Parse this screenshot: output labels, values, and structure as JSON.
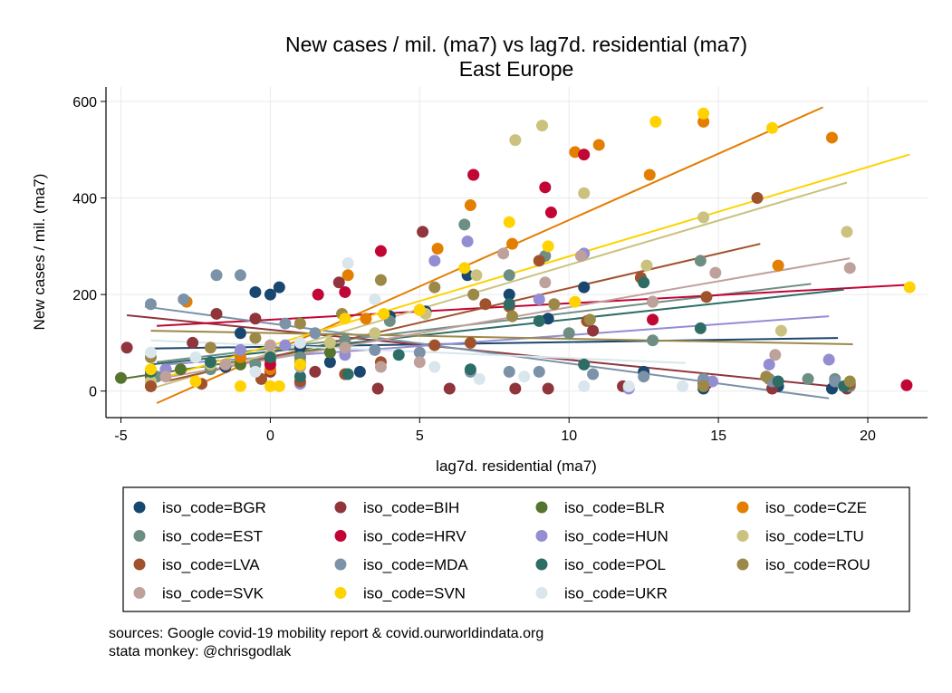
{
  "chart_data": {
    "type": "scatter",
    "title": "New cases / mil. (ma7) vs lag7d. residential (ma7)",
    "subtitle": "East Europe",
    "xlabel": "lag7d. residential (ma7)",
    "ylabel": "New cases / mil. (ma7)",
    "xlim": [
      -5.5,
      22
    ],
    "ylim": [
      -55,
      630
    ],
    "xticks": [
      -5,
      0,
      5,
      10,
      15,
      20
    ],
    "yticks": [
      0,
      200,
      400,
      600
    ],
    "grid": true,
    "legend_position": "bottom",
    "fit_lines": "linear fit per series",
    "series": [
      {
        "name": "iso_code=BGR",
        "color": "#1a476f",
        "points": [
          [
            -1.5,
            50
          ],
          [
            -1,
            120
          ],
          [
            -0.5,
            205
          ],
          [
            0,
            200
          ],
          [
            0.3,
            215
          ],
          [
            1,
            90
          ],
          [
            2,
            60
          ],
          [
            3,
            40
          ],
          [
            4,
            155
          ],
          [
            5.2,
            165
          ],
          [
            6.6,
            240
          ],
          [
            8,
            200
          ],
          [
            9.3,
            150
          ],
          [
            10.5,
            215
          ],
          [
            12.5,
            40
          ],
          [
            14.5,
            5
          ],
          [
            17,
            10
          ],
          [
            18.8,
            5
          ]
        ],
        "fit": [
          [
            -4,
            88
          ],
          [
            19,
            110
          ]
        ]
      },
      {
        "name": "iso_code=BIH",
        "color": "#90353b",
        "points": [
          [
            -4.8,
            90
          ],
          [
            -4,
            30
          ],
          [
            -2.6,
            100
          ],
          [
            -1.8,
            160
          ],
          [
            -0.5,
            150
          ],
          [
            0,
            40
          ],
          [
            1.5,
            40
          ],
          [
            2.3,
            225
          ],
          [
            3.6,
            5
          ],
          [
            5.1,
            330
          ],
          [
            6,
            5
          ],
          [
            6.8,
            448
          ],
          [
            8.2,
            5
          ],
          [
            9.3,
            5
          ],
          [
            10.8,
            125
          ],
          [
            11.8,
            10
          ],
          [
            14.5,
            15
          ],
          [
            16.8,
            5
          ],
          [
            19.3,
            5
          ]
        ],
        "fit": [
          [
            -4.8,
            157
          ],
          [
            18.8,
            10
          ]
        ]
      },
      {
        "name": "iso_code=BLR",
        "color": "#55752f",
        "points": [
          [
            -5,
            27
          ],
          [
            -4,
            35
          ],
          [
            -3,
            45
          ],
          [
            -2,
            55
          ],
          [
            -1,
            55
          ],
          [
            0,
            65
          ],
          [
            1,
            70
          ],
          [
            2,
            80
          ]
        ],
        "fit": [
          [
            -5,
            25
          ],
          [
            3,
            100
          ]
        ]
      },
      {
        "name": "iso_code=CZE",
        "color": "#e37e00",
        "points": [
          [
            -4,
            10
          ],
          [
            -2.8,
            185
          ],
          [
            -1,
            70
          ],
          [
            0,
            45
          ],
          [
            1,
            60
          ],
          [
            2.6,
            240
          ],
          [
            3.2,
            150
          ],
          [
            5,
            168
          ],
          [
            5.6,
            295
          ],
          [
            6.7,
            385
          ],
          [
            8.1,
            305
          ],
          [
            10.2,
            495
          ],
          [
            11,
            510
          ],
          [
            12.7,
            448
          ],
          [
            14.5,
            558
          ],
          [
            17,
            260
          ],
          [
            18.8,
            525
          ]
        ],
        "fit": [
          [
            -3.8,
            -25
          ],
          [
            18.5,
            588
          ]
        ]
      },
      {
        "name": "iso_code=EST",
        "color": "#6e8e84",
        "points": [
          [
            -3.8,
            30
          ],
          [
            -2,
            45
          ],
          [
            -0.5,
            55
          ],
          [
            1,
            70
          ],
          [
            2.5,
            105
          ],
          [
            4,
            145
          ],
          [
            6.5,
            345
          ],
          [
            8,
            240
          ],
          [
            9.2,
            280
          ],
          [
            10,
            120
          ],
          [
            12.8,
            105
          ],
          [
            14.4,
            270
          ],
          [
            16.7,
            25
          ],
          [
            18,
            25
          ],
          [
            18.9,
            25
          ],
          [
            19.4,
            10
          ]
        ],
        "fit": [
          [
            -3.8,
            60
          ],
          [
            18.1,
            222
          ]
        ]
      },
      {
        "name": "iso_code=HRV",
        "color": "#c10534",
        "points": [
          [
            -3.5,
            45
          ],
          [
            0,
            55
          ],
          [
            1.6,
            200
          ],
          [
            2.5,
            205
          ],
          [
            3.7,
            290
          ],
          [
            6.8,
            448
          ],
          [
            9.2,
            422
          ],
          [
            9.4,
            370
          ],
          [
            10.5,
            490
          ],
          [
            12.8,
            148
          ],
          [
            14.6,
            15
          ],
          [
            21.3,
            12
          ]
        ],
        "fit": [
          [
            -3.8,
            135
          ],
          [
            21.3,
            220
          ]
        ]
      },
      {
        "name": "iso_code=HUN",
        "color": "#938dd2",
        "points": [
          [
            -3.5,
            45
          ],
          [
            -1,
            85
          ],
          [
            0.5,
            95
          ],
          [
            1,
            15
          ],
          [
            2.5,
            75
          ],
          [
            5.5,
            270
          ],
          [
            6.6,
            310
          ],
          [
            9,
            190
          ],
          [
            10.5,
            285
          ],
          [
            12,
            5
          ],
          [
            14.8,
            20
          ],
          [
            16.7,
            55
          ],
          [
            18.7,
            65
          ]
        ],
        "fit": [
          [
            -3.5,
            55
          ],
          [
            18.7,
            155
          ]
        ]
      },
      {
        "name": "iso_code=LTU",
        "color": "#cac27e",
        "points": [
          [
            -4,
            20
          ],
          [
            -2,
            55
          ],
          [
            0,
            75
          ],
          [
            2,
            100
          ],
          [
            3.5,
            120
          ],
          [
            5.2,
            160
          ],
          [
            6.9,
            240
          ],
          [
            8.2,
            520
          ],
          [
            9.1,
            550
          ],
          [
            10.5,
            410
          ],
          [
            12.6,
            260
          ],
          [
            14.5,
            360
          ],
          [
            17.1,
            125
          ],
          [
            19.3,
            330
          ]
        ],
        "fit": [
          [
            -4,
            5
          ],
          [
            19.3,
            432
          ]
        ]
      },
      {
        "name": "iso_code=LVA",
        "color": "#a0522d",
        "points": [
          [
            -4,
            10
          ],
          [
            -2.3,
            15
          ],
          [
            -0.3,
            25
          ],
          [
            1,
            20
          ],
          [
            2.5,
            35
          ],
          [
            3.7,
            60
          ],
          [
            5.5,
            95
          ],
          [
            6.7,
            100
          ],
          [
            7.2,
            180
          ],
          [
            8,
            175
          ],
          [
            9,
            270
          ],
          [
            10.6,
            145
          ],
          [
            12.4,
            235
          ],
          [
            14.6,
            195
          ],
          [
            16.3,
            400
          ],
          [
            19.4,
            15
          ]
        ],
        "fit": [
          [
            -3.5,
            20
          ],
          [
            16.4,
            305
          ]
        ]
      },
      {
        "name": "iso_code=MDA",
        "color": "#7b92a8",
        "points": [
          [
            -4,
            180
          ],
          [
            -2.9,
            190
          ],
          [
            -1.8,
            240
          ],
          [
            -1,
            240
          ],
          [
            0.5,
            140
          ],
          [
            1.5,
            120
          ],
          [
            3.5,
            85
          ],
          [
            5,
            80
          ],
          [
            6.7,
            40
          ],
          [
            8,
            40
          ],
          [
            9,
            40
          ],
          [
            10.8,
            35
          ],
          [
            12.5,
            30
          ],
          [
            14.5,
            25
          ],
          [
            16.8,
            20
          ],
          [
            18.9,
            20
          ]
        ],
        "fit": [
          [
            -4.2,
            175
          ],
          [
            18.7,
            -15
          ]
        ]
      },
      {
        "name": "iso_code=POL",
        "color": "#2d6d66",
        "points": [
          [
            -4,
            40
          ],
          [
            -2,
            60
          ],
          [
            0,
            70
          ],
          [
            1,
            30
          ],
          [
            2.6,
            35
          ],
          [
            4.3,
            75
          ],
          [
            6.7,
            45
          ],
          [
            8,
            180
          ],
          [
            9,
            145
          ],
          [
            10.5,
            55
          ],
          [
            12.5,
            225
          ],
          [
            14.4,
            130
          ],
          [
            17,
            20
          ],
          [
            19.2,
            10
          ]
        ],
        "fit": [
          [
            -4,
            55
          ],
          [
            19.2,
            210
          ]
        ]
      },
      {
        "name": "iso_code=ROU",
        "color": "#9c8847",
        "points": [
          [
            -4,
            70
          ],
          [
            -2,
            90
          ],
          [
            -0.5,
            110
          ],
          [
            1,
            140
          ],
          [
            2.4,
            160
          ],
          [
            3.7,
            230
          ],
          [
            5.5,
            215
          ],
          [
            6.8,
            200
          ],
          [
            8.1,
            155
          ],
          [
            9.5,
            180
          ],
          [
            10.7,
            148
          ],
          [
            12.8,
            185
          ],
          [
            14.5,
            10
          ],
          [
            16.6,
            30
          ],
          [
            19.4,
            20
          ]
        ],
        "fit": [
          [
            -4,
            125
          ],
          [
            19.5,
            97
          ]
        ]
      },
      {
        "name": "iso_code=SVK",
        "color": "#bfa19c",
        "points": [
          [
            -3.5,
            30
          ],
          [
            -1.5,
            55
          ],
          [
            0,
            95
          ],
          [
            1,
            50
          ],
          [
            2.5,
            90
          ],
          [
            3.7,
            50
          ],
          [
            5,
            60
          ],
          [
            7.8,
            285
          ],
          [
            9.2,
            225
          ],
          [
            10.4,
            280
          ],
          [
            12.8,
            185
          ],
          [
            14.9,
            245
          ],
          [
            16.9,
            75
          ],
          [
            19.4,
            255
          ]
        ],
        "fit": [
          [
            -3.8,
            25
          ],
          [
            19.4,
            275
          ]
        ]
      },
      {
        "name": "iso_code=SVN",
        "color": "#ffd200",
        "points": [
          [
            -4,
            45
          ],
          [
            -2.5,
            20
          ],
          [
            -1,
            10
          ],
          [
            0,
            10
          ],
          [
            0.3,
            10
          ],
          [
            1,
            55
          ],
          [
            2.5,
            150
          ],
          [
            3.8,
            160
          ],
          [
            5,
            168
          ],
          [
            6.5,
            255
          ],
          [
            8,
            350
          ],
          [
            9.3,
            300
          ],
          [
            10.2,
            185
          ],
          [
            12.9,
            558
          ],
          [
            14.5,
            575
          ],
          [
            16.8,
            545
          ],
          [
            21.4,
            215
          ]
        ],
        "fit": [
          [
            -4,
            20
          ],
          [
            21.4,
            490
          ]
        ]
      },
      {
        "name": "iso_code=UKR",
        "color": "#d9e6eb",
        "points": [
          [
            -4,
            80
          ],
          [
            -2.5,
            70
          ],
          [
            -0.5,
            40
          ],
          [
            1,
            100
          ],
          [
            2.6,
            265
          ],
          [
            3.5,
            190
          ],
          [
            5.5,
            50
          ],
          [
            7,
            25
          ],
          [
            8.5,
            30
          ],
          [
            10.5,
            10
          ],
          [
            12,
            10
          ],
          [
            13.8,
            10
          ]
        ],
        "fit": [
          [
            -4,
            105
          ],
          [
            13.9,
            58
          ]
        ]
      }
    ]
  },
  "footnote": {
    "line1": "sources: Google covid-19 mobility report & covid.ourworldindata.org",
    "line2": "stata monkey: @chrisgodlak"
  }
}
